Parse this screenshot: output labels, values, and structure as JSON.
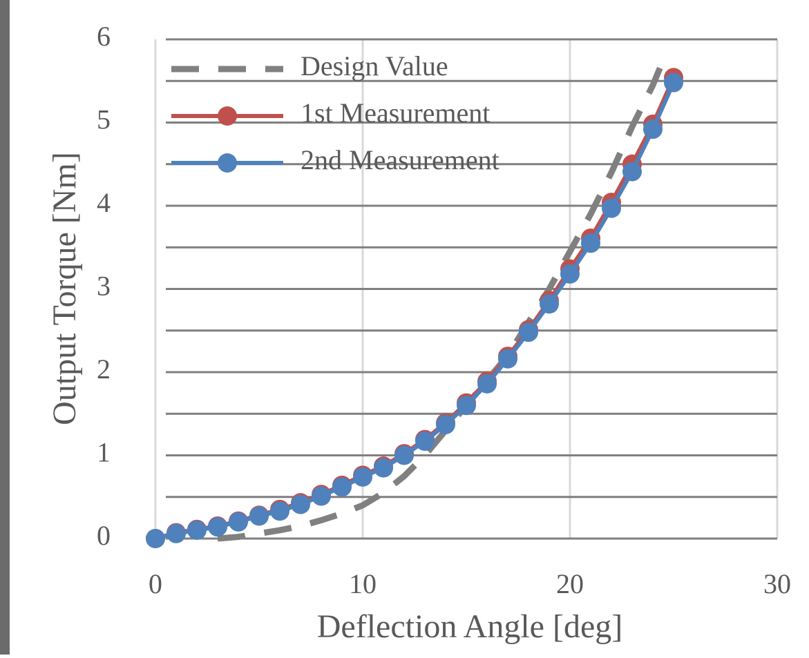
{
  "chart_data": {
    "type": "line",
    "x_label": "Deflection Angle [deg]",
    "y_label": "Output Torque [Nm]",
    "xlim": [
      0,
      30
    ],
    "xticks": [
      0,
      10,
      20,
      30
    ],
    "ylim": [
      0,
      6
    ],
    "yticks": [
      0,
      1,
      2,
      3,
      4,
      5,
      6
    ],
    "y_minor_ticks": [
      0.5,
      1.5,
      2.5,
      3.5,
      4.5,
      5.5
    ],
    "grid": true,
    "legend": "upper left",
    "series": [
      {
        "name": "Design Value",
        "color": "#808080",
        "dashed": true,
        "markers": false,
        "x": [
          3,
          4,
          5,
          6,
          7,
          8,
          9,
          10,
          11,
          12,
          13,
          14,
          15,
          16,
          17,
          18,
          19,
          20,
          21,
          22,
          23,
          24,
          24.5
        ],
        "values": [
          0,
          0.02,
          0.06,
          0.1,
          0.15,
          0.22,
          0.3,
          0.4,
          0.55,
          0.75,
          1.0,
          1.3,
          1.6,
          1.9,
          2.2,
          2.6,
          3.0,
          3.45,
          3.9,
          4.4,
          4.95,
          5.45,
          5.75
        ]
      },
      {
        "name": "1st Measurement",
        "color": "#c0504d",
        "dashed": false,
        "markers": true,
        "x": [
          0,
          1,
          2,
          3,
          4,
          5,
          6,
          7,
          8,
          9,
          10,
          11,
          12,
          13,
          14,
          15,
          16,
          17,
          18,
          19,
          20,
          21,
          22,
          23,
          24,
          25
        ],
        "values": [
          0,
          0.07,
          0.11,
          0.15,
          0.21,
          0.28,
          0.35,
          0.43,
          0.53,
          0.64,
          0.76,
          0.87,
          1.02,
          1.19,
          1.39,
          1.63,
          1.89,
          2.19,
          2.51,
          2.86,
          3.24,
          3.61,
          4.04,
          4.5,
          4.98,
          5.54
        ]
      },
      {
        "name": "2nd Measurement",
        "color": "#4f81bd",
        "dashed": false,
        "markers": true,
        "x": [
          0,
          1,
          2,
          3,
          4,
          5,
          6,
          7,
          8,
          9,
          10,
          11,
          12,
          13,
          14,
          15,
          16,
          17,
          18,
          19,
          20,
          21,
          22,
          23,
          24,
          25
        ],
        "values": [
          0,
          0.06,
          0.1,
          0.14,
          0.2,
          0.27,
          0.33,
          0.41,
          0.51,
          0.62,
          0.74,
          0.85,
          1.0,
          1.17,
          1.37,
          1.6,
          1.86,
          2.16,
          2.48,
          2.82,
          3.18,
          3.55,
          3.97,
          4.41,
          4.92,
          5.48
        ]
      }
    ]
  }
}
